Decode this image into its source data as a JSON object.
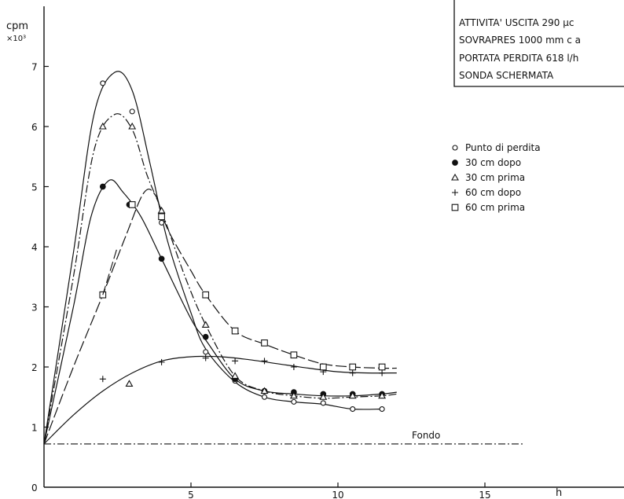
{
  "chart_data": {
    "type": "line",
    "ylabel": "cpm",
    "ylabel_multiplier": "×10³",
    "xlabel": "h",
    "xlim": [
      0,
      20
    ],
    "ylim": [
      0,
      8
    ],
    "x_ticks": [
      0,
      5,
      10,
      15
    ],
    "y_ticks": [
      0,
      1,
      2,
      3,
      4,
      5,
      6,
      7
    ],
    "grid": false,
    "legend_position": "right",
    "info_box": [
      "ATTIVITA' USCITA 290 µc",
      "SOVRAPRES 1000 mm c a",
      "PORTATA PERDITA 618 l/h",
      "SONDA SCHERMATA"
    ],
    "baseline": {
      "label": "Fondo",
      "y": 0.72
    },
    "series": [
      {
        "name": "Punto di perdita",
        "marker": "circle-open",
        "points": [
          [
            2,
            6.72
          ],
          [
            3,
            6.25
          ],
          [
            4,
            4.4
          ],
          [
            5.5,
            2.25
          ],
          [
            6.5,
            1.77
          ],
          [
            7.5,
            1.5
          ],
          [
            8.5,
            1.42
          ],
          [
            9.5,
            1.4
          ],
          [
            10.5,
            1.3
          ],
          [
            11.5,
            1.3
          ]
        ],
        "curve": [
          [
            0,
            0.72
          ],
          [
            1,
            3.9
          ],
          [
            1.7,
            6.2
          ],
          [
            2.4,
            6.9
          ],
          [
            3,
            6.6
          ],
          [
            3.6,
            5.4
          ],
          [
            4.2,
            4.1
          ],
          [
            5,
            2.9
          ],
          [
            5.5,
            2.3
          ],
          [
            6.5,
            1.75
          ],
          [
            7.5,
            1.5
          ],
          [
            8.5,
            1.42
          ],
          [
            9.5,
            1.38
          ],
          [
            10.5,
            1.3
          ],
          [
            11.5,
            1.3
          ]
        ]
      },
      {
        "name": "30 cm dopo",
        "marker": "circle-filled",
        "points": [
          [
            2,
            5.0
          ],
          [
            2.9,
            4.7
          ],
          [
            4,
            3.8
          ],
          [
            5.5,
            2.5
          ],
          [
            6.5,
            1.8
          ],
          [
            7.5,
            1.6
          ],
          [
            8.5,
            1.58
          ],
          [
            9.5,
            1.55
          ],
          [
            10.5,
            1.55
          ],
          [
            11.5,
            1.55
          ]
        ],
        "curve": [
          [
            0,
            0.72
          ],
          [
            1,
            3.0
          ],
          [
            1.6,
            4.5
          ],
          [
            2.2,
            5.1
          ],
          [
            2.7,
            4.9
          ],
          [
            3.3,
            4.5
          ],
          [
            4,
            3.8
          ],
          [
            5,
            2.8
          ],
          [
            5.5,
            2.45
          ],
          [
            6.5,
            1.8
          ],
          [
            7.5,
            1.6
          ],
          [
            8.5,
            1.55
          ],
          [
            9.5,
            1.52
          ],
          [
            10.5,
            1.52
          ],
          [
            11.5,
            1.55
          ],
          [
            12,
            1.58
          ]
        ]
      },
      {
        "name": "30 cm prima",
        "marker": "triangle-open",
        "points": [
          [
            2,
            6.0
          ],
          [
            3,
            6.0
          ],
          [
            4,
            4.6
          ],
          [
            5.5,
            2.7
          ],
          [
            6.5,
            1.85
          ],
          [
            7.5,
            1.6
          ],
          [
            8.5,
            1.52
          ],
          [
            9.5,
            1.5
          ],
          [
            10.5,
            1.52
          ],
          [
            11.5,
            1.52
          ]
        ],
        "curve": [
          [
            0,
            0.72
          ],
          [
            1,
            3.5
          ],
          [
            1.7,
            5.6
          ],
          [
            2.4,
            6.2
          ],
          [
            3,
            5.95
          ],
          [
            3.5,
            5.2
          ],
          [
            4,
            4.6
          ],
          [
            4.8,
            3.5
          ],
          [
            5.5,
            2.7
          ],
          [
            6.5,
            1.85
          ],
          [
            7.5,
            1.6
          ],
          [
            8.5,
            1.52
          ],
          [
            9.5,
            1.48
          ],
          [
            10.5,
            1.5
          ],
          [
            11.5,
            1.52
          ],
          [
            12,
            1.55
          ]
        ]
      },
      {
        "name": "60 cm dopo",
        "marker": "plus",
        "points": [
          [
            2,
            1.8
          ],
          [
            4,
            2.08
          ],
          [
            5.5,
            2.15
          ],
          [
            6.5,
            2.1
          ],
          [
            7.5,
            2.1
          ],
          [
            8.5,
            2.0
          ],
          [
            9.5,
            1.92
          ],
          [
            10.5,
            1.9
          ],
          [
            11.5,
            1.9
          ]
        ],
        "curve": [
          [
            0,
            0.72
          ],
          [
            1,
            1.2
          ],
          [
            2,
            1.6
          ],
          [
            3,
            1.9
          ],
          [
            4,
            2.1
          ],
          [
            5,
            2.17
          ],
          [
            6,
            2.17
          ],
          [
            7,
            2.12
          ],
          [
            8,
            2.05
          ],
          [
            9,
            1.98
          ],
          [
            10,
            1.92
          ],
          [
            11,
            1.9
          ],
          [
            12,
            1.9
          ]
        ]
      },
      {
        "name": "60 cm prima",
        "marker": "square-open",
        "points": [
          [
            2,
            3.2
          ],
          [
            3,
            4.7
          ],
          [
            4,
            4.5
          ],
          [
            5.5,
            3.2
          ],
          [
            6.5,
            2.6
          ],
          [
            7.5,
            2.4
          ],
          [
            8.5,
            2.2
          ],
          [
            9.5,
            2.0
          ],
          [
            10.5,
            2.0
          ],
          [
            11.5,
            2.0
          ]
        ],
        "curve": [
          [
            0,
            0.72
          ],
          [
            1,
            2.0
          ],
          [
            2,
            3.2
          ],
          [
            2.8,
            4.2
          ],
          [
            3.4,
            4.9
          ],
          [
            3.8,
            4.85
          ],
          [
            4.2,
            4.3
          ],
          [
            5,
            3.6
          ],
          [
            5.5,
            3.2
          ],
          [
            6.5,
            2.6
          ],
          [
            7.5,
            2.38
          ],
          [
            8.5,
            2.2
          ],
          [
            9.5,
            2.05
          ],
          [
            10.5,
            2.0
          ],
          [
            11.5,
            1.98
          ],
          [
            12,
            1.98
          ]
        ]
      }
    ],
    "annotations": [
      {
        "kind": "dashed-segment",
        "points": [
          [
            2,
            3.2
          ],
          [
            2.5,
            4.0
          ]
        ]
      },
      {
        "kind": "stray-marker",
        "marker": "triangle-open",
        "x": 2.9,
        "y": 1.72
      }
    ]
  }
}
